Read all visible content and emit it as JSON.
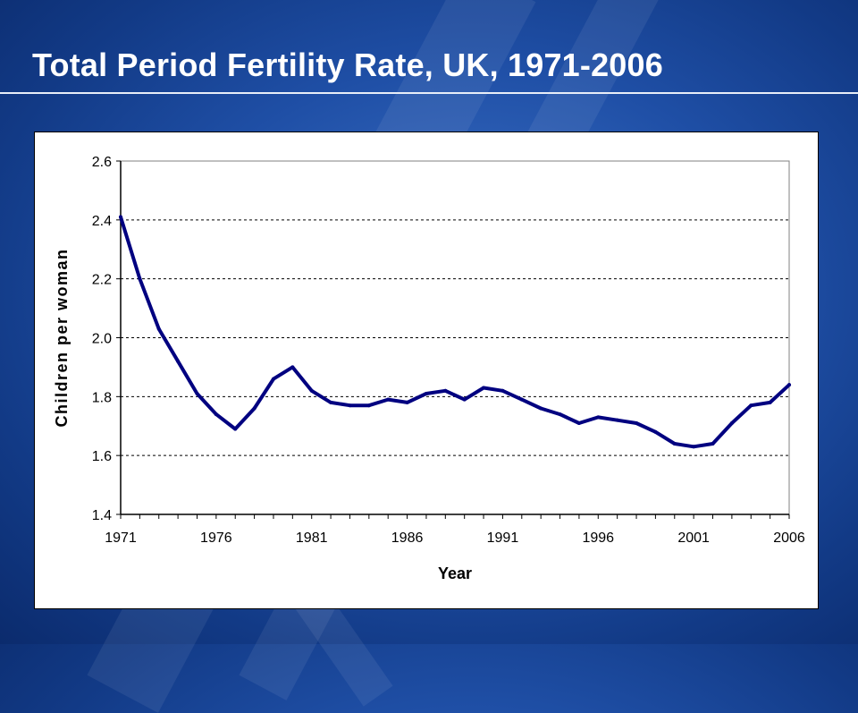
{
  "slide": {
    "title": "Total Period Fertility Rate, UK, 1971-2006"
  },
  "chart_data": {
    "type": "line",
    "title": "",
    "xlabel": "Year",
    "ylabel": "Children per woman",
    "xlim": [
      1971,
      2006
    ],
    "ylim": [
      1.4,
      2.6
    ],
    "x_ticks": [
      "1971",
      "1976",
      "1981",
      "1986",
      "1991",
      "1996",
      "2001",
      "2006"
    ],
    "y_ticks": [
      "1.4",
      "1.6",
      "1.8",
      "2.0",
      "2.2",
      "2.4",
      "2.6"
    ],
    "grid": "horizontal dashed",
    "legend": "none",
    "series": [
      {
        "color": "#000080",
        "x": [
          1971,
          1972,
          1973,
          1974,
          1975,
          1976,
          1977,
          1978,
          1979,
          1980,
          1981,
          1982,
          1983,
          1984,
          1985,
          1986,
          1987,
          1988,
          1989,
          1990,
          1991,
          1992,
          1993,
          1994,
          1995,
          1996,
          1997,
          1998,
          1999,
          2000,
          2001,
          2002,
          2003,
          2004,
          2005,
          2006
        ],
        "y": [
          2.41,
          2.2,
          2.03,
          1.92,
          1.81,
          1.74,
          1.69,
          1.76,
          1.86,
          1.9,
          1.82,
          1.78,
          1.77,
          1.77,
          1.79,
          1.78,
          1.81,
          1.82,
          1.79,
          1.83,
          1.82,
          1.79,
          1.76,
          1.74,
          1.71,
          1.73,
          1.72,
          1.71,
          1.68,
          1.64,
          1.63,
          1.64,
          1.71,
          1.77,
          1.78,
          1.84
        ]
      }
    ]
  }
}
